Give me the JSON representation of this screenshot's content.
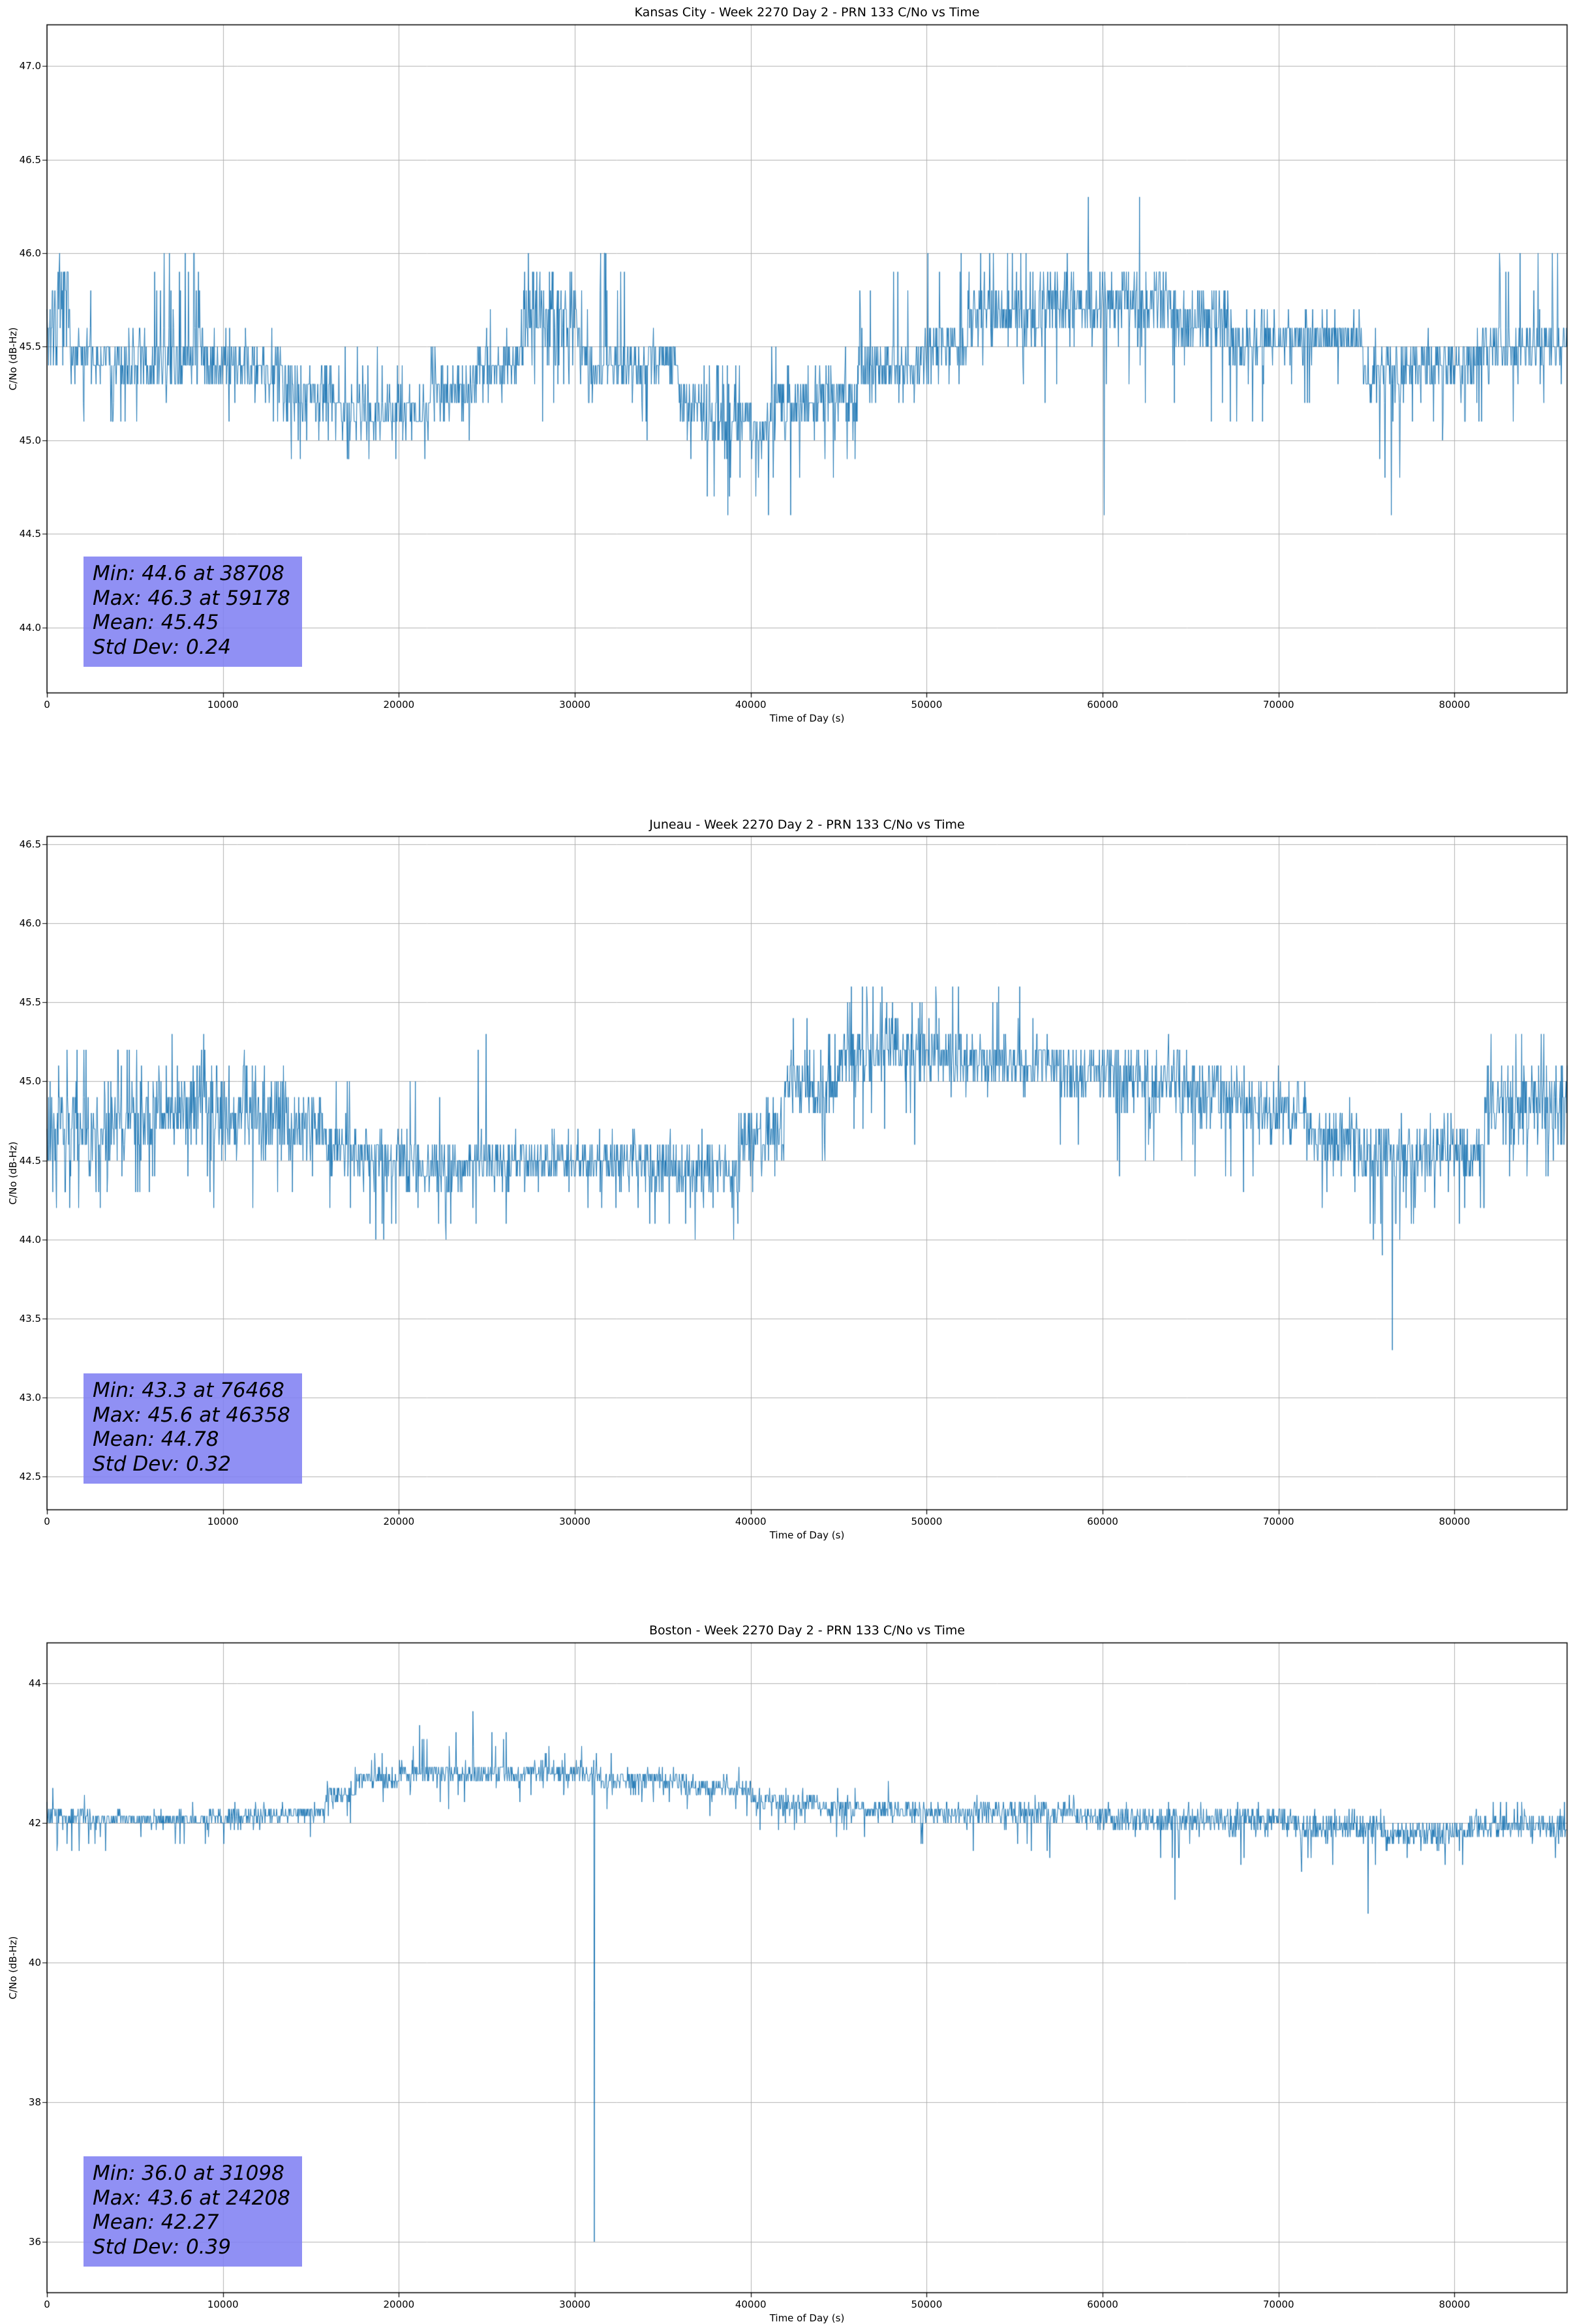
{
  "page": {
    "background": "#ffffff"
  },
  "chart_data": [
    {
      "type": "line",
      "station": "Kansas City",
      "title": "Kansas City - Week 2270 Day 2 - PRN 133 C/No vs Time",
      "xlabel": "Time of Day (s)",
      "ylabel": "C/No (dB-Hz)",
      "line_color": "#1f77b4",
      "grid": true,
      "legend": "none",
      "xlim": [
        0,
        86400
      ],
      "ylim": [
        43.65,
        47.22
      ],
      "xtick_values": [
        0,
        10000,
        20000,
        30000,
        40000,
        50000,
        60000,
        70000,
        80000
      ],
      "xtick_labels": [
        "0",
        "10000",
        "20000",
        "30000",
        "40000",
        "50000",
        "60000",
        "70000",
        "80000"
      ],
      "ytick_values": [
        44.0,
        44.5,
        45.0,
        45.5,
        46.0,
        46.5,
        47.0
      ],
      "ytick_labels": [
        "44.0",
        "44.5",
        "45.0",
        "45.5",
        "46.0",
        "46.5",
        "47.0"
      ],
      "stats": {
        "min_value": 44.6,
        "min_time": 38708,
        "max_value": 46.3,
        "max_time": 59178,
        "mean": 45.45,
        "std_dev": 0.24,
        "lines": {
          "min": "Min: 44.6 at 38708",
          "max": "Max: 46.3 at 59178",
          "mean": "Mean: 45.45",
          "std": "Std Dev: 0.24"
        }
      },
      "band_segments": [
        [
          0,
          1400,
          45.3,
          46.0,
          0,
          0,
          0,
          0
        ],
        [
          1400,
          3600,
          45.3,
          45.6,
          46.0,
          0.03,
          45.0,
          0.04
        ],
        [
          3600,
          5400,
          45.2,
          45.6,
          0,
          0,
          45.0,
          0.12
        ],
        [
          5400,
          7900,
          45.2,
          45.6,
          46.0,
          0.1,
          0,
          0
        ],
        [
          7900,
          9000,
          45.2,
          45.7,
          46.0,
          0.18,
          0,
          0
        ],
        [
          9000,
          13400,
          45.2,
          45.6,
          0,
          0,
          45.0,
          0.02
        ],
        [
          13400,
          16800,
          45.0,
          45.5,
          0,
          0,
          44.9,
          0.05
        ],
        [
          16800,
          21800,
          45.0,
          45.3,
          45.5,
          0.05,
          44.9,
          0.08
        ],
        [
          21800,
          24400,
          45.1,
          45.5,
          0,
          0,
          44.9,
          0.03
        ],
        [
          24400,
          27100,
          45.2,
          45.6,
          45.9,
          0.03,
          0,
          0
        ],
        [
          27100,
          30300,
          45.3,
          46.0,
          0,
          0,
          45.1,
          0.05
        ],
        [
          30300,
          32900,
          45.2,
          45.6,
          46.0,
          0.15,
          0,
          0
        ],
        [
          32900,
          35900,
          45.2,
          45.6,
          0,
          0,
          45.0,
          0.03
        ],
        [
          35900,
          37200,
          45.0,
          45.4,
          0,
          0,
          44.8,
          0.05
        ],
        [
          37200,
          41500,
          44.9,
          45.3,
          45.5,
          0.05,
          44.6,
          0.07
        ],
        [
          41500,
          43600,
          45.0,
          45.4,
          0,
          0,
          44.6,
          0.04
        ],
        [
          43600,
          46100,
          45.0,
          45.5,
          0,
          0,
          44.8,
          0.03
        ],
        [
          46100,
          49800,
          45.2,
          45.6,
          45.9,
          0.04,
          0,
          0
        ],
        [
          49800,
          52300,
          45.3,
          45.7,
          46.0,
          0.05,
          0,
          0
        ],
        [
          52300,
          56400,
          45.4,
          45.9,
          46.0,
          0.06,
          45.2,
          0.02
        ],
        [
          56400,
          61400,
          45.5,
          46.0,
          0,
          0,
          45.2,
          0.02
        ],
        [
          61400,
          63900,
          45.5,
          46.0,
          0,
          0,
          45.2,
          0.02
        ],
        [
          63900,
          67200,
          45.4,
          45.9,
          0,
          0,
          45.1,
          0.03
        ],
        [
          67200,
          69700,
          45.3,
          45.7,
          0,
          0,
          45.0,
          0.05
        ],
        [
          69700,
          74800,
          45.4,
          45.7,
          0,
          0,
          45.2,
          0.02
        ],
        [
          74800,
          77300,
          45.1,
          45.6,
          0,
          0,
          44.7,
          0.05
        ],
        [
          77300,
          81500,
          45.2,
          45.6,
          0,
          0,
          45.0,
          0.05
        ],
        [
          81500,
          86400,
          45.3,
          45.7,
          46.0,
          0.04,
          45.1,
          0.03
        ]
      ],
      "spikes": [
        {
          "t": 38708,
          "v": 44.6
        },
        {
          "t": 59178,
          "v": 46.3
        },
        {
          "t": 60100,
          "v": 44.6
        },
        {
          "t": 62100,
          "v": 46.3
        },
        {
          "t": 76400,
          "v": 44.6
        }
      ]
    },
    {
      "type": "line",
      "station": "Juneau",
      "title": "Juneau - Week 2270 Day 2 - PRN 133 C/No vs Time",
      "xlabel": "Time of Day (s)",
      "ylabel": "C/No (dB-Hz)",
      "line_color": "#1f77b4",
      "grid": true,
      "legend": "none",
      "xlim": [
        0,
        86400
      ],
      "ylim": [
        42.29,
        46.55
      ],
      "xtick_values": [
        0,
        10000,
        20000,
        30000,
        40000,
        50000,
        60000,
        70000,
        80000
      ],
      "xtick_labels": [
        "0",
        "10000",
        "20000",
        "30000",
        "40000",
        "50000",
        "60000",
        "70000",
        "80000"
      ],
      "ytick_values": [
        42.5,
        43.0,
        43.5,
        44.0,
        44.5,
        45.0,
        45.5,
        46.0,
        46.5
      ],
      "ytick_labels": [
        "42.5",
        "43.0",
        "43.5",
        "44.0",
        "44.5",
        "45.0",
        "45.5",
        "46.0",
        "46.5"
      ],
      "stats": {
        "min_value": 43.3,
        "min_time": 76468,
        "max_value": 45.6,
        "max_time": 46358,
        "mean": 44.78,
        "std_dev": 0.32,
        "lines": {
          "min": "Min: 43.3 at 76468",
          "max": "Max: 45.6 at 46358",
          "mean": "Mean: 44.78",
          "std": "Std Dev: 0.32"
        }
      },
      "band_segments": [
        [
          0,
          3300,
          44.3,
          45.1,
          45.2,
          0.05,
          44.2,
          0.05
        ],
        [
          3300,
          5900,
          44.4,
          45.1,
          45.3,
          0.04,
          44.3,
          0.04
        ],
        [
          5900,
          9300,
          44.5,
          45.2,
          45.3,
          0.08,
          44.3,
          0.03
        ],
        [
          9300,
          13600,
          44.4,
          45.2,
          0,
          0,
          44.2,
          0.03
        ],
        [
          13600,
          15800,
          44.4,
          45.0,
          0,
          0,
          44.2,
          0.04
        ],
        [
          15800,
          17900,
          44.3,
          44.8,
          45.0,
          0.02,
          44.1,
          0.05
        ],
        [
          17900,
          20100,
          44.3,
          44.8,
          0,
          0,
          44.0,
          0.04
        ],
        [
          20100,
          23500,
          44.2,
          44.7,
          45.0,
          0.03,
          44.0,
          0.03
        ],
        [
          23500,
          26500,
          44.3,
          44.7,
          45.3,
          0.01,
          44.1,
          0.03
        ],
        [
          26500,
          31200,
          44.3,
          44.7,
          0,
          0,
          44.2,
          0.02
        ],
        [
          31200,
          34200,
          44.3,
          44.7,
          0,
          0,
          44.2,
          0.03
        ],
        [
          34200,
          37200,
          44.2,
          44.7,
          0,
          0,
          44.0,
          0.05
        ],
        [
          37200,
          39300,
          44.2,
          44.7,
          0,
          0,
          44.0,
          0.04
        ],
        [
          39300,
          41900,
          44.4,
          44.9,
          0,
          0,
          44.2,
          0.03
        ],
        [
          41900,
          44900,
          44.7,
          45.2,
          45.4,
          0.03,
          44.5,
          0.03
        ],
        [
          44900,
          47400,
          44.9,
          45.4,
          45.6,
          0.06,
          44.6,
          0.02
        ],
        [
          47400,
          50800,
          44.9,
          45.5,
          45.6,
          0.08,
          44.6,
          0.02
        ],
        [
          50800,
          54200,
          44.9,
          45.4,
          45.6,
          0.05,
          44.6,
          0.02
        ],
        [
          54200,
          57600,
          44.9,
          45.3,
          45.6,
          0.05,
          44.6,
          0.02
        ],
        [
          57600,
          60600,
          44.8,
          45.3,
          0,
          0,
          44.5,
          0.03
        ],
        [
          60600,
          64800,
          44.7,
          45.3,
          0,
          0,
          44.4,
          0.03
        ],
        [
          64800,
          68200,
          44.6,
          45.2,
          0,
          0,
          44.3,
          0.04
        ],
        [
          68200,
          71600,
          44.5,
          45.1,
          0,
          0,
          44.3,
          0.04
        ],
        [
          71600,
          74500,
          44.4,
          44.9,
          0,
          0,
          44.2,
          0.04
        ],
        [
          74500,
          77900,
          44.3,
          44.8,
          0,
          0,
          44.0,
          0.05
        ],
        [
          77900,
          81700,
          44.3,
          44.8,
          0,
          0,
          44.1,
          0.04
        ],
        [
          81700,
          86400,
          44.5,
          45.2,
          45.3,
          0.04,
          44.3,
          0.03
        ]
      ],
      "spikes": [
        {
          "t": 46358,
          "v": 45.6
        },
        {
          "t": 75900,
          "v": 43.9
        },
        {
          "t": 76468,
          "v": 43.3
        },
        {
          "t": 76900,
          "v": 44.0
        }
      ]
    },
    {
      "type": "line",
      "station": "Boston",
      "title": "Boston - Week 2270 Day 2 - PRN 133 C/No vs Time",
      "xlabel": "Time of Day (s)",
      "ylabel": "C/No (dB-Hz)",
      "line_color": "#1f77b4",
      "grid": true,
      "legend": "none",
      "xlim": [
        0,
        86400
      ],
      "ylim": [
        35.27,
        44.58
      ],
      "xtick_values": [
        0,
        10000,
        20000,
        30000,
        40000,
        50000,
        60000,
        70000,
        80000
      ],
      "xtick_labels": [
        "0",
        "10000",
        "20000",
        "30000",
        "40000",
        "50000",
        "60000",
        "70000",
        "80000"
      ],
      "ytick_values": [
        36,
        38,
        40,
        42,
        44
      ],
      "ytick_labels": [
        "36",
        "38",
        "40",
        "42",
        "44"
      ],
      "stats": {
        "min_value": 36.0,
        "min_time": 31098,
        "max_value": 43.6,
        "max_time": 24208,
        "mean": 42.27,
        "std_dev": 0.39,
        "lines": {
          "min": "Min: 36.0 at 31098",
          "max": "Max: 43.6 at 24208",
          "mean": "Mean: 42.27",
          "std": "Std Dev: 0.39"
        }
      },
      "band_segments": [
        [
          0,
          2400,
          41.9,
          42.3,
          42.5,
          0.03,
          41.6,
          0.04
        ],
        [
          2400,
          9300,
          41.9,
          42.2,
          42.4,
          0.02,
          41.6,
          0.03
        ],
        [
          9300,
          13600,
          41.9,
          42.3,
          0,
          0,
          41.6,
          0.03
        ],
        [
          13600,
          15800,
          42.0,
          42.3,
          0,
          0,
          41.8,
          0.02
        ],
        [
          15800,
          17500,
          42.2,
          42.6,
          0,
          0,
          42.0,
          0.02
        ],
        [
          17500,
          20100,
          42.4,
          42.8,
          43.0,
          0.04,
          42.2,
          0.02
        ],
        [
          20100,
          26900,
          42.5,
          42.9,
          43.4,
          0.05,
          42.2,
          0.02
        ],
        [
          26900,
          31500,
          42.5,
          42.9,
          43.1,
          0.04,
          42.3,
          0.02
        ],
        [
          31500,
          36200,
          42.4,
          42.8,
          43.0,
          0.03,
          42.2,
          0.02
        ],
        [
          36200,
          40000,
          42.3,
          42.7,
          42.9,
          0.03,
          42.0,
          0.03
        ],
        [
          40000,
          43800,
          42.1,
          42.5,
          0,
          0,
          41.9,
          0.03
        ],
        [
          43800,
          48400,
          42.0,
          42.4,
          42.6,
          0.02,
          41.8,
          0.03
        ],
        [
          48400,
          53400,
          41.9,
          42.4,
          0,
          0,
          41.6,
          0.03
        ],
        [
          53400,
          58400,
          41.9,
          42.4,
          0,
          0,
          41.5,
          0.03
        ],
        [
          58400,
          62600,
          41.8,
          42.3,
          0,
          0,
          41.3,
          0.02
        ],
        [
          62600,
          65900,
          41.8,
          42.3,
          0,
          0,
          41.4,
          0.03
        ],
        [
          65900,
          70900,
          41.8,
          42.3,
          0,
          0,
          41.4,
          0.03
        ],
        [
          70900,
          75900,
          41.7,
          42.2,
          0,
          0,
          41.3,
          0.03
        ],
        [
          75900,
          81000,
          41.6,
          42.1,
          0,
          0,
          41.3,
          0.03
        ],
        [
          81000,
          86400,
          41.7,
          42.2,
          42.4,
          0.03,
          41.4,
          0.02
        ]
      ],
      "spikes": [
        {
          "t": 24208,
          "v": 43.6
        },
        {
          "t": 31098,
          "v": 36.0
        },
        {
          "t": 64100,
          "v": 40.9
        },
        {
          "t": 75100,
          "v": 40.7
        }
      ]
    }
  ]
}
